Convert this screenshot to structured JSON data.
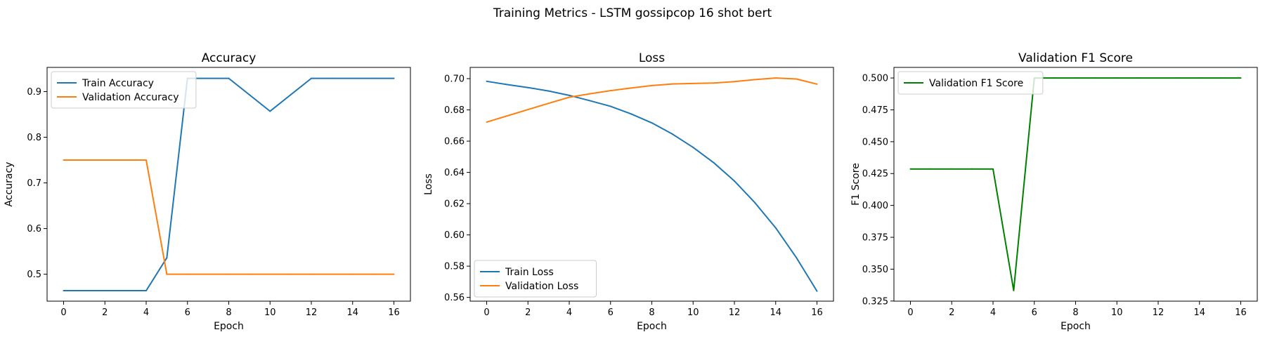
{
  "figure": {
    "title": "Training Metrics - LSTM gossipcop 16 shot bert"
  },
  "chart_data": [
    {
      "type": "line",
      "title": "Accuracy",
      "xlabel": "Epoch",
      "ylabel": "Accuracy",
      "xlim": [
        -0.8,
        16.8
      ],
      "ylim": [
        0.441,
        0.953
      ],
      "xticks": [
        0,
        2,
        4,
        6,
        8,
        10,
        12,
        14,
        16
      ],
      "yticks": [
        0.5,
        0.6,
        0.7,
        0.8,
        0.9
      ],
      "ytick_decimals": 1,
      "grid": false,
      "legend": "upper-left",
      "x": [
        0,
        1,
        2,
        3,
        4,
        5,
        6,
        7,
        8,
        9,
        10,
        11,
        12,
        13,
        14,
        15,
        16
      ],
      "series": [
        {
          "name": "Train Accuracy",
          "color": "#1f77b4",
          "values": [
            0.464,
            0.464,
            0.464,
            0.464,
            0.464,
            0.536,
            0.929,
            0.929,
            0.929,
            0.893,
            0.857,
            0.893,
            0.929,
            0.929,
            0.929,
            0.929,
            0.929
          ]
        },
        {
          "name": "Validation Accuracy",
          "color": "#ff7f0e",
          "values": [
            0.75,
            0.75,
            0.75,
            0.75,
            0.75,
            0.5,
            0.5,
            0.5,
            0.5,
            0.5,
            0.5,
            0.5,
            0.5,
            0.5,
            0.5,
            0.5,
            0.5
          ]
        }
      ]
    },
    {
      "type": "line",
      "title": "Loss",
      "xlabel": "Epoch",
      "ylabel": "Loss",
      "xlim": [
        -0.8,
        16.8
      ],
      "ylim": [
        0.5576,
        0.7072
      ],
      "xticks": [
        0,
        2,
        4,
        6,
        8,
        10,
        12,
        14,
        16
      ],
      "yticks": [
        0.56,
        0.58,
        0.6,
        0.62,
        0.64,
        0.66,
        0.68,
        0.7
      ],
      "ytick_decimals": 2,
      "grid": false,
      "legend": "lower-left",
      "x": [
        0,
        1,
        2,
        3,
        4,
        5,
        6,
        7,
        8,
        9,
        10,
        11,
        12,
        13,
        14,
        15,
        16
      ],
      "series": [
        {
          "name": "Train Loss",
          "color": "#1f77b4",
          "values": [
            0.6983,
            0.6962,
            0.6943,
            0.6921,
            0.6893,
            0.6859,
            0.6823,
            0.6774,
            0.6717,
            0.6645,
            0.656,
            0.6462,
            0.6345,
            0.6205,
            0.6045,
            0.5855,
            0.564
          ]
        },
        {
          "name": "Validation Loss",
          "color": "#ff7f0e",
          "values": [
            0.6722,
            0.6762,
            0.6802,
            0.6842,
            0.6881,
            0.6903,
            0.6923,
            0.694,
            0.6956,
            0.6966,
            0.6969,
            0.6972,
            0.6981,
            0.6994,
            0.7004,
            0.6998,
            0.6965
          ]
        }
      ]
    },
    {
      "type": "line",
      "title": "Validation F1 Score",
      "xlabel": "Epoch",
      "ylabel": "F1 Score",
      "xlim": [
        -0.8,
        16.8
      ],
      "ylim": [
        0.3249,
        0.5083
      ],
      "xticks": [
        0,
        2,
        4,
        6,
        8,
        10,
        12,
        14,
        16
      ],
      "yticks": [
        0.325,
        0.35,
        0.375,
        0.4,
        0.425,
        0.45,
        0.475,
        0.5
      ],
      "ytick_decimals": 3,
      "grid": false,
      "legend": "upper-left",
      "x": [
        0,
        1,
        2,
        3,
        4,
        5,
        6,
        7,
        8,
        9,
        10,
        11,
        12,
        13,
        14,
        15,
        16
      ],
      "series": [
        {
          "name": "Validation F1 Score",
          "color": "#008000",
          "values": [
            0.4286,
            0.4286,
            0.4286,
            0.4286,
            0.4286,
            0.3333,
            0.5,
            0.5,
            0.5,
            0.5,
            0.5,
            0.5,
            0.5,
            0.5,
            0.5,
            0.5,
            0.5
          ]
        }
      ]
    }
  ]
}
